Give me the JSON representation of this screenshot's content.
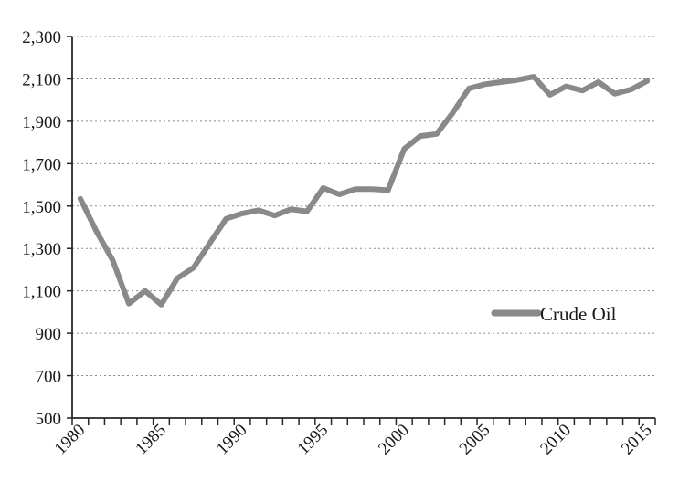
{
  "chart_data": {
    "type": "line",
    "title": "",
    "xlabel": "",
    "ylabel": "",
    "x": [
      1980,
      1981,
      1982,
      1983,
      1984,
      1985,
      1986,
      1987,
      1988,
      1989,
      1990,
      1991,
      1992,
      1993,
      1994,
      1995,
      1996,
      1997,
      1998,
      1999,
      2000,
      2001,
      2002,
      2003,
      2004,
      2005,
      2006,
      2007,
      2008,
      2009,
      2010,
      2011,
      2012,
      2013,
      2014,
      2015
    ],
    "series": [
      {
        "name": "Crude Oil",
        "color": "#898989",
        "values": [
          1535,
          1380,
          1245,
          1040,
          1100,
          1035,
          1160,
          1210,
          1325,
          1440,
          1465,
          1480,
          1455,
          1485,
          1475,
          1585,
          1555,
          1580,
          1580,
          1575,
          1770,
          1830,
          1840,
          1940,
          2055,
          2075,
          2085,
          2095,
          2110,
          2025,
          2065,
          2045,
          2085,
          2030,
          2050,
          2090
        ]
      }
    ],
    "ylim": [
      500,
      2300
    ],
    "ytick_step": 200,
    "ytick_labels": [
      "500",
      "700",
      "900",
      "1,100",
      "1,300",
      "1,500",
      "1,700",
      "1,900",
      "2,100",
      "2,300"
    ],
    "xtick_label_years": [
      1980,
      1985,
      1990,
      1995,
      2000,
      2005,
      2010,
      2015
    ],
    "xtick_labels": [
      "1980",
      "1985",
      "1990",
      "1995",
      "2000",
      "2005",
      "2010",
      "2015"
    ],
    "grid": "horizontal-dotted",
    "grid_color": "#8c8c8c",
    "axis_color": "#262626",
    "legend_position": "middle-right"
  }
}
